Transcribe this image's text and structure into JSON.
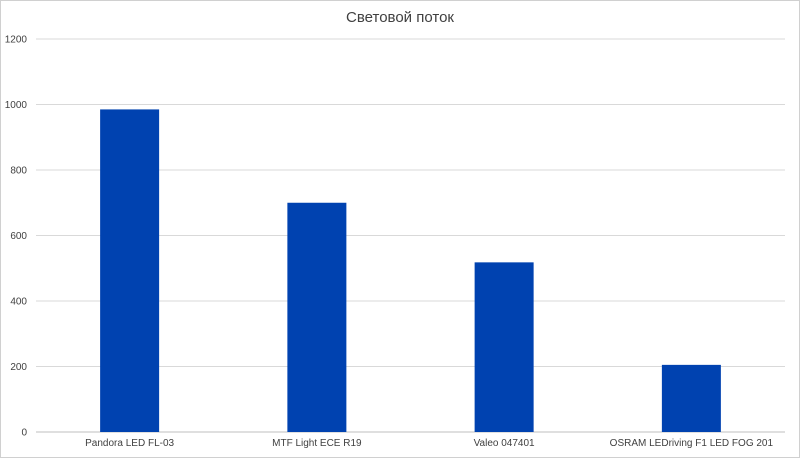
{
  "chart_data": {
    "type": "bar",
    "title": "Световой поток",
    "xlabel": "",
    "ylabel": "",
    "categories": [
      "Pandora LED FL-03",
      "MTF Light ECE R19",
      "Valeo 047401",
      "OSRAM LEDriving F1 LED FOG 201"
    ],
    "values": [
      985,
      700,
      518,
      205
    ],
    "ylim": [
      0,
      1200
    ],
    "yticks": [
      0,
      200,
      400,
      600,
      800,
      1000,
      1200
    ],
    "grid": true,
    "legend": "none",
    "bar_color": "#0042B0",
    "grid_color": "#d9d9d9",
    "axis_color": "#bfbfbf"
  }
}
